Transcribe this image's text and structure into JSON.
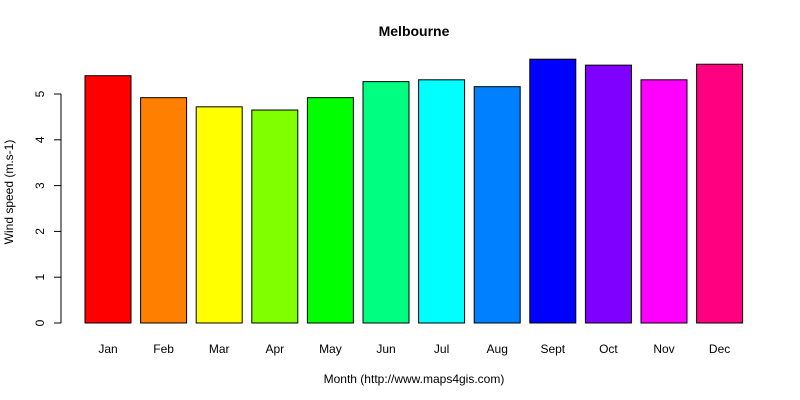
{
  "chart_data": {
    "type": "bar",
    "title": "Melbourne",
    "xlabel": "Month (http://www.maps4gis.com)",
    "ylabel": "Wind speed (m.s-1)",
    "categories": [
      "Jan",
      "Feb",
      "Mar",
      "Apr",
      "May",
      "Jun",
      "Jul",
      "Aug",
      "Sept",
      "Oct",
      "Nov",
      "Dec"
    ],
    "values": [
      5.4,
      4.92,
      4.72,
      4.65,
      4.92,
      5.27,
      5.31,
      5.16,
      5.76,
      5.63,
      5.31,
      5.65
    ],
    "colors": [
      "#FF0000",
      "#FF8000",
      "#FFFF00",
      "#80FF00",
      "#00FF00",
      "#00FF80",
      "#00FFFF",
      "#0080FF",
      "#0000FF",
      "#8000FF",
      "#FF00FF",
      "#FF0080"
    ],
    "yticks": [
      0,
      1,
      2,
      3,
      4,
      5
    ],
    "ylim": [
      0,
      6
    ],
    "grid": false,
    "legend": "none"
  }
}
